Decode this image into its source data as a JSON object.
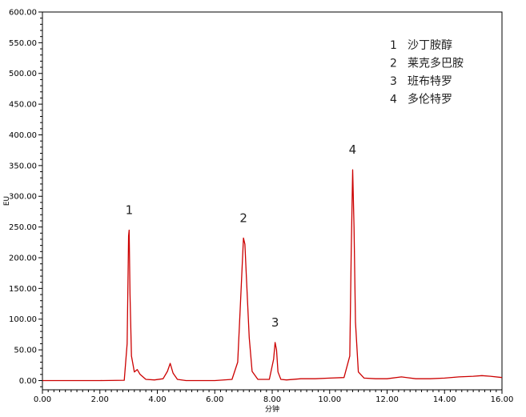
{
  "chart_data": {
    "type": "line",
    "title": "",
    "xlabel": "分钟",
    "ylabel": "EU",
    "xlim": [
      0,
      16
    ],
    "ylim": [
      -15,
      600
    ],
    "x_ticks": [
      "0.00",
      "2.00",
      "4.00",
      "6.00",
      "8.00",
      "10.00",
      "12.00",
      "14.00",
      "16.00"
    ],
    "y_ticks": [
      "0.00",
      "50.00",
      "100.00",
      "150.00",
      "200.00",
      "250.00",
      "300.00",
      "350.00",
      "400.00",
      "450.00",
      "500.00",
      "550.00",
      "600.00"
    ],
    "grid": false,
    "line_color": "#cc0000",
    "series": [
      {
        "x": [
          0,
          1,
          2,
          2.85,
          2.95,
          3.0,
          3.02,
          3.05,
          3.1,
          3.2,
          3.3,
          3.4,
          3.6,
          3.9,
          4.2,
          4.35,
          4.45,
          4.55,
          4.7,
          5.0,
          6.0,
          6.6,
          6.8,
          6.9,
          7.0,
          7.05,
          7.1,
          7.2,
          7.3,
          7.5,
          7.9,
          8.05,
          8.1,
          8.15,
          8.2,
          8.3,
          8.5,
          9.0,
          9.5,
          10.0,
          10.5,
          10.7,
          10.75,
          10.8,
          10.85,
          10.9,
          11.0,
          11.2,
          11.6,
          12.0,
          12.5,
          13.0,
          13.5,
          14.0,
          14.5,
          15.0,
          15.3,
          15.6,
          16.0
        ],
        "y": [
          0,
          0,
          0,
          0.5,
          60,
          235,
          245,
          140,
          40,
          14,
          18,
          10,
          2,
          1,
          3,
          15,
          28,
          12,
          2,
          0,
          0,
          2,
          30,
          130,
          232,
          222,
          170,
          70,
          15,
          2,
          2,
          35,
          62,
          50,
          14,
          2,
          1,
          3,
          3,
          4,
          5,
          40,
          210,
          343,
          250,
          95,
          14,
          4,
          3,
          3,
          6,
          3,
          3,
          4,
          6,
          7,
          8,
          7,
          5
        ]
      }
    ],
    "peaks": [
      {
        "label": "1",
        "x": 3.02,
        "y": 245
      },
      {
        "label": "2",
        "x": 7.0,
        "y": 232
      },
      {
        "label": "3",
        "x": 8.1,
        "y": 62
      },
      {
        "label": "4",
        "x": 10.8,
        "y": 343
      }
    ],
    "legend": {
      "placement": "top-right",
      "items": [
        {
          "num": "1",
          "name": "沙丁胺醇"
        },
        {
          "num": "2",
          "name": "莱克多巴胺"
        },
        {
          "num": "3",
          "name": "班布特罗"
        },
        {
          "num": "4",
          "name": "多伦特罗"
        }
      ]
    }
  }
}
